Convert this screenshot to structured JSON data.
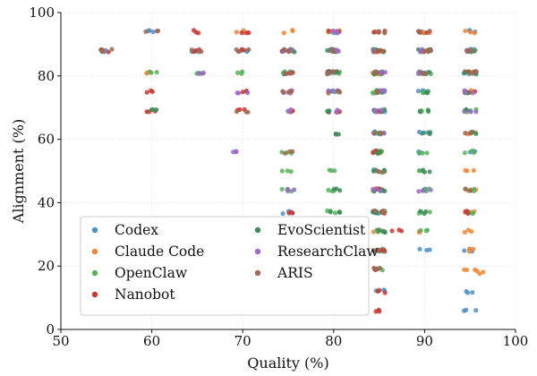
{
  "chart_data": {
    "type": "scatter",
    "title": "",
    "xlabel": "Quality (%)",
    "ylabel": "Alignment (%)",
    "xlim": [
      50,
      100
    ],
    "ylim": [
      0,
      100
    ],
    "xticks": [
      50,
      60,
      70,
      80,
      90,
      100
    ],
    "yticks": [
      0,
      20,
      40,
      60,
      80,
      100
    ],
    "grid": true,
    "legend_position": "lower-left",
    "series": [
      {
        "name": "Codex",
        "color": "#4e91c7",
        "points": [
          [
            85,
            94
          ],
          [
            85,
            88
          ],
          [
            85,
            81
          ],
          [
            85,
            75
          ],
          [
            85,
            69
          ],
          [
            85,
            62
          ],
          [
            85,
            56
          ],
          [
            85,
            50
          ],
          [
            85,
            44
          ],
          [
            85,
            37
          ],
          [
            85,
            31
          ],
          [
            85,
            25
          ],
          [
            85,
            12
          ],
          [
            80,
            94
          ],
          [
            80,
            88
          ],
          [
            80,
            81
          ],
          [
            80,
            75
          ],
          [
            75,
            88
          ],
          [
            75,
            81
          ],
          [
            75,
            37
          ],
          [
            90,
            94
          ],
          [
            90,
            88
          ],
          [
            90,
            81
          ],
          [
            90,
            75
          ],
          [
            90,
            62
          ],
          [
            90,
            56
          ],
          [
            90,
            44
          ],
          [
            90,
            25
          ],
          [
            95,
            94
          ],
          [
            95,
            88
          ],
          [
            95,
            81
          ],
          [
            95,
            56
          ],
          [
            95,
            25
          ],
          [
            95,
            12
          ],
          [
            95,
            6
          ],
          [
            60,
            94
          ],
          [
            70,
            88
          ],
          [
            65,
            88
          ],
          [
            55,
            88
          ]
        ]
      },
      {
        "name": "Claude Code",
        "color": "#ef8636",
        "points": [
          [
            90,
            94
          ],
          [
            95,
            94
          ],
          [
            95,
            88
          ],
          [
            95,
            81
          ],
          [
            95,
            75
          ],
          [
            95,
            62
          ],
          [
            95,
            50
          ],
          [
            95,
            44
          ],
          [
            95,
            37
          ],
          [
            95,
            31
          ],
          [
            95,
            25
          ],
          [
            95,
            19
          ],
          [
            96,
            18
          ],
          [
            85,
            94
          ],
          [
            85,
            88
          ],
          [
            85,
            81
          ],
          [
            80,
            94
          ],
          [
            75,
            94
          ],
          [
            70,
            94
          ],
          [
            85,
            56
          ],
          [
            85,
            44
          ],
          [
            85,
            31
          ],
          [
            90,
            31
          ],
          [
            60,
            81
          ]
        ]
      },
      {
        "name": "OpenClaw",
        "color": "#56b35b",
        "points": [
          [
            60,
            81
          ],
          [
            65,
            81
          ],
          [
            70,
            81
          ],
          [
            75,
            81
          ],
          [
            75,
            56
          ],
          [
            75,
            50
          ],
          [
            75,
            44
          ],
          [
            80,
            81
          ],
          [
            80,
            75
          ],
          [
            80,
            50
          ],
          [
            80,
            44
          ],
          [
            80,
            37
          ],
          [
            85,
            88
          ],
          [
            85,
            81
          ],
          [
            85,
            75
          ],
          [
            85,
            62
          ],
          [
            85,
            56
          ],
          [
            85,
            50
          ],
          [
            85,
            44
          ],
          [
            85,
            37
          ],
          [
            85,
            31
          ],
          [
            85,
            25
          ],
          [
            85,
            19
          ],
          [
            90,
            88
          ],
          [
            90,
            81
          ],
          [
            90,
            75
          ],
          [
            90,
            69
          ],
          [
            90,
            56
          ],
          [
            90,
            50
          ],
          [
            90,
            44
          ],
          [
            90,
            37
          ],
          [
            90,
            31
          ],
          [
            95,
            88
          ],
          [
            95,
            81
          ],
          [
            95,
            69
          ],
          [
            95,
            56
          ],
          [
            95,
            44
          ],
          [
            95,
            37
          ]
        ]
      },
      {
        "name": "Nanobot",
        "color": "#c53a32",
        "points": [
          [
            55,
            88
          ],
          [
            60,
            75
          ],
          [
            60,
            69
          ],
          [
            65,
            94
          ],
          [
            65,
            88
          ],
          [
            70,
            94
          ],
          [
            70,
            88
          ],
          [
            70,
            75
          ],
          [
            70,
            69
          ],
          [
            75,
            88
          ],
          [
            75,
            81
          ],
          [
            75,
            75
          ],
          [
            75,
            69
          ],
          [
            75,
            37
          ],
          [
            80,
            94
          ],
          [
            80,
            88
          ],
          [
            80,
            81
          ],
          [
            80,
            69
          ],
          [
            85,
            94
          ],
          [
            85,
            88
          ],
          [
            85,
            81
          ],
          [
            85,
            69
          ],
          [
            85,
            56
          ],
          [
            85,
            44
          ],
          [
            85,
            37
          ],
          [
            85,
            25
          ],
          [
            85,
            19
          ],
          [
            85,
            12
          ],
          [
            85,
            6
          ],
          [
            87,
            31
          ],
          [
            90,
            94
          ],
          [
            90,
            88
          ],
          [
            95,
            81
          ],
          [
            95,
            75
          ],
          [
            95,
            37
          ]
        ]
      },
      {
        "name": "EvoScientist",
        "color": "#3d8c5a",
        "points": [
          [
            60,
            69
          ],
          [
            75,
            88
          ],
          [
            80,
            88
          ],
          [
            80,
            81
          ],
          [
            80,
            69
          ],
          [
            80,
            62
          ],
          [
            80,
            44
          ],
          [
            80,
            37
          ],
          [
            85,
            88
          ],
          [
            85,
            81
          ],
          [
            85,
            75
          ],
          [
            85,
            69
          ],
          [
            85,
            62
          ],
          [
            85,
            56
          ],
          [
            85,
            50
          ],
          [
            85,
            44
          ],
          [
            85,
            37
          ],
          [
            85,
            31
          ],
          [
            90,
            88
          ],
          [
            90,
            81
          ],
          [
            90,
            75
          ],
          [
            90,
            69
          ],
          [
            90,
            62
          ],
          [
            90,
            50
          ],
          [
            90,
            37
          ],
          [
            95,
            88
          ],
          [
            95,
            81
          ],
          [
            95,
            75
          ],
          [
            95,
            69
          ],
          [
            95,
            62
          ]
        ]
      },
      {
        "name": "ResearchClaw",
        "color": "#9b6ac4",
        "points": [
          [
            65,
            81
          ],
          [
            69,
            56
          ],
          [
            70,
            75
          ],
          [
            75,
            88
          ],
          [
            75,
            75
          ],
          [
            75,
            69
          ],
          [
            75,
            44
          ],
          [
            80,
            94
          ],
          [
            80,
            88
          ],
          [
            80,
            75
          ],
          [
            80,
            69
          ],
          [
            85,
            88
          ],
          [
            85,
            81
          ],
          [
            85,
            75
          ],
          [
            85,
            69
          ],
          [
            85,
            62
          ],
          [
            85,
            44
          ],
          [
            90,
            88
          ],
          [
            90,
            81
          ],
          [
            90,
            44
          ],
          [
            95,
            88
          ],
          [
            95,
            75
          ],
          [
            95,
            69
          ]
        ]
      },
      {
        "name": "ARIS",
        "color": "#9c6a55",
        "points": [
          [
            55,
            88
          ],
          [
            60,
            94
          ],
          [
            65,
            88
          ],
          [
            70,
            88
          ],
          [
            70,
            69
          ],
          [
            75,
            88
          ],
          [
            75,
            81
          ],
          [
            75,
            75
          ],
          [
            75,
            56
          ],
          [
            80,
            88
          ],
          [
            80,
            81
          ],
          [
            80,
            75
          ],
          [
            85,
            94
          ],
          [
            85,
            88
          ],
          [
            85,
            81
          ],
          [
            85,
            75
          ],
          [
            85,
            62
          ],
          [
            85,
            50
          ],
          [
            85,
            37
          ],
          [
            85,
            25
          ],
          [
            85,
            19
          ],
          [
            90,
            94
          ],
          [
            90,
            88
          ],
          [
            90,
            81
          ],
          [
            95,
            88
          ],
          [
            95,
            81
          ],
          [
            95,
            62
          ],
          [
            95,
            44
          ]
        ]
      }
    ]
  }
}
